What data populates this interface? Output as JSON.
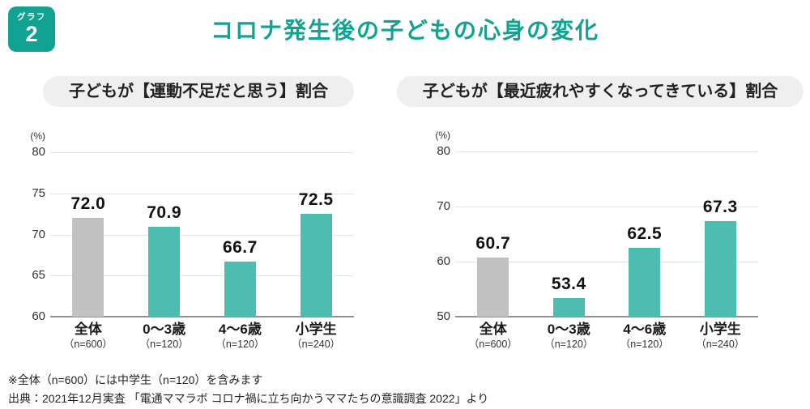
{
  "badge": {
    "label": "グラフ",
    "number": "2"
  },
  "title": "コロナ発生後の子どもの心身の変化",
  "footnotes": [
    "※全体（n=600）には中学生（n=120）を含みます",
    "出典：2021年12月実査 「電通ママラボ コロナ禍に立ち向かうママたちの意識調査 2022」より"
  ],
  "colors": {
    "accent_teal": "#11a392",
    "bar_teal": "#4dbdb2",
    "bar_gray": "#c1c1c1",
    "pill_bg": "#efefef",
    "gridline": "#e3e3e3",
    "axis_line": "#909090"
  },
  "chart_data": [
    {
      "type": "bar",
      "title": "子どもが【運動不足だと思う】割合",
      "unit_label": "(%)",
      "categories": [
        "全体",
        "0〜3歳",
        "4〜6歳",
        "小学生"
      ],
      "sample_sizes": [
        "（n=600）",
        "（n=120）",
        "（n=120）",
        "（n=240）"
      ],
      "values": [
        72.0,
        70.9,
        66.7,
        72.5
      ],
      "value_labels": [
        "72.0",
        "70.9",
        "66.7",
        "72.5"
      ],
      "bar_palette": [
        "gray",
        "teal",
        "teal",
        "teal"
      ],
      "ylim": [
        60,
        80
      ],
      "yticks": [
        60,
        65,
        70,
        75,
        80
      ],
      "grid": true,
      "legend": "none"
    },
    {
      "type": "bar",
      "title": "子どもが【最近疲れやすくなってきている】割合",
      "unit_label": "(%)",
      "categories": [
        "全体",
        "0〜3歳",
        "4〜6歳",
        "小学生"
      ],
      "sample_sizes": [
        "（n=600）",
        "（n=120）",
        "（n=120）",
        "（n=240）"
      ],
      "values": [
        60.7,
        53.4,
        62.5,
        67.3
      ],
      "value_labels": [
        "60.7",
        "53.4",
        "62.5",
        "67.3"
      ],
      "bar_palette": [
        "gray",
        "teal",
        "teal",
        "teal"
      ],
      "ylim": [
        50,
        80
      ],
      "yticks": [
        50,
        60,
        70,
        80
      ],
      "grid": true,
      "legend": "none"
    }
  ]
}
